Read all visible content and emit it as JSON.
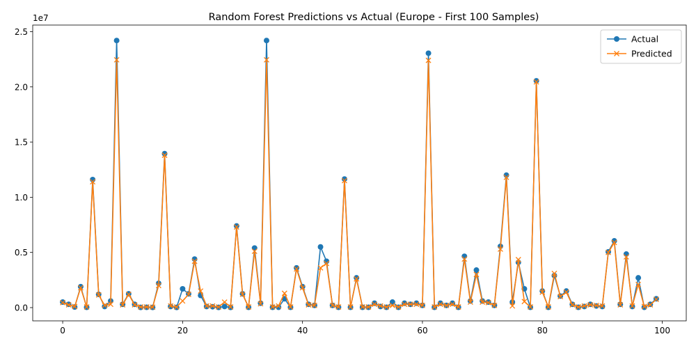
{
  "chart_data": {
    "type": "line",
    "title": "Random Forest Predictions vs Actual (Europe - First 100 Samples)",
    "xlabel": "",
    "ylabel": "",
    "y_offset_label": "1e7",
    "xlim": [
      -5,
      104
    ],
    "ylim": [
      -1200000,
      25600000
    ],
    "x_ticks": [
      0,
      20,
      40,
      60,
      80,
      100
    ],
    "x_tick_labels": [
      "0",
      "20",
      "40",
      "60",
      "80",
      "100"
    ],
    "y_ticks": [
      0,
      5000000,
      10000000,
      15000000,
      20000000,
      25000000
    ],
    "y_tick_labels": [
      "0.0",
      "0.5",
      "1.0",
      "1.5",
      "2.0",
      "2.5"
    ],
    "grid": false,
    "legend_position": "top-right",
    "colors": {
      "actual": "#1f77b4",
      "predicted": "#ff7f0e"
    },
    "series": [
      {
        "name": "Actual",
        "marker": "circle",
        "values": [
          500000,
          300000,
          50000,
          1900000,
          30000,
          11600000,
          1200000,
          100000,
          600000,
          24200000,
          300000,
          1250000,
          300000,
          20000,
          30000,
          20000,
          2200000,
          13950000,
          100000,
          20000,
          1700000,
          1250000,
          4400000,
          1100000,
          100000,
          80000,
          20000,
          100000,
          20000,
          7400000,
          1250000,
          30000,
          5400000,
          400000,
          24200000,
          30000,
          30000,
          800000,
          30000,
          3600000,
          1900000,
          300000,
          200000,
          5500000,
          4200000,
          200000,
          30000,
          11650000,
          30000,
          2700000,
          30000,
          30000,
          400000,
          100000,
          30000,
          500000,
          30000,
          400000,
          300000,
          400000,
          200000,
          23050000,
          30000,
          400000,
          200000,
          400000,
          30000,
          4650000,
          600000,
          3400000,
          600000,
          500000,
          200000,
          5550000,
          12000000,
          500000,
          4100000,
          1700000,
          30000,
          20550000,
          1500000,
          30000,
          2900000,
          1050000,
          1500000,
          300000,
          30000,
          100000,
          300000,
          150000,
          100000,
          5050000,
          6050000,
          300000,
          4850000,
          100000,
          2700000,
          30000,
          300000,
          800000
        ]
      },
      {
        "name": "Predicted",
        "marker": "x",
        "values": [
          450000,
          250000,
          100000,
          1800000,
          60000,
          11400000,
          1150000,
          200000,
          300000,
          22450000,
          250000,
          1200000,
          250000,
          60000,
          60000,
          40000,
          2000000,
          13800000,
          150000,
          60000,
          600000,
          1200000,
          4200000,
          1500000,
          150000,
          150000,
          60000,
          500000,
          60000,
          7300000,
          1200000,
          60000,
          5100000,
          350000,
          22450000,
          60000,
          150000,
          1300000,
          60000,
          3500000,
          1800000,
          250000,
          200000,
          3600000,
          4000000,
          200000,
          60000,
          11500000,
          60000,
          2600000,
          60000,
          60000,
          300000,
          150000,
          60000,
          200000,
          60000,
          300000,
          300000,
          300000,
          200000,
          22400000,
          60000,
          300000,
          200000,
          300000,
          60000,
          4400000,
          500000,
          3000000,
          500000,
          450000,
          200000,
          5300000,
          11800000,
          150000,
          4350000,
          550000,
          60000,
          20450000,
          1400000,
          60000,
          3100000,
          1000000,
          1400000,
          250000,
          60000,
          150000,
          250000,
          200000,
          150000,
          5000000,
          5900000,
          250000,
          4600000,
          150000,
          2100000,
          100000,
          250000,
          750000
        ]
      }
    ]
  }
}
